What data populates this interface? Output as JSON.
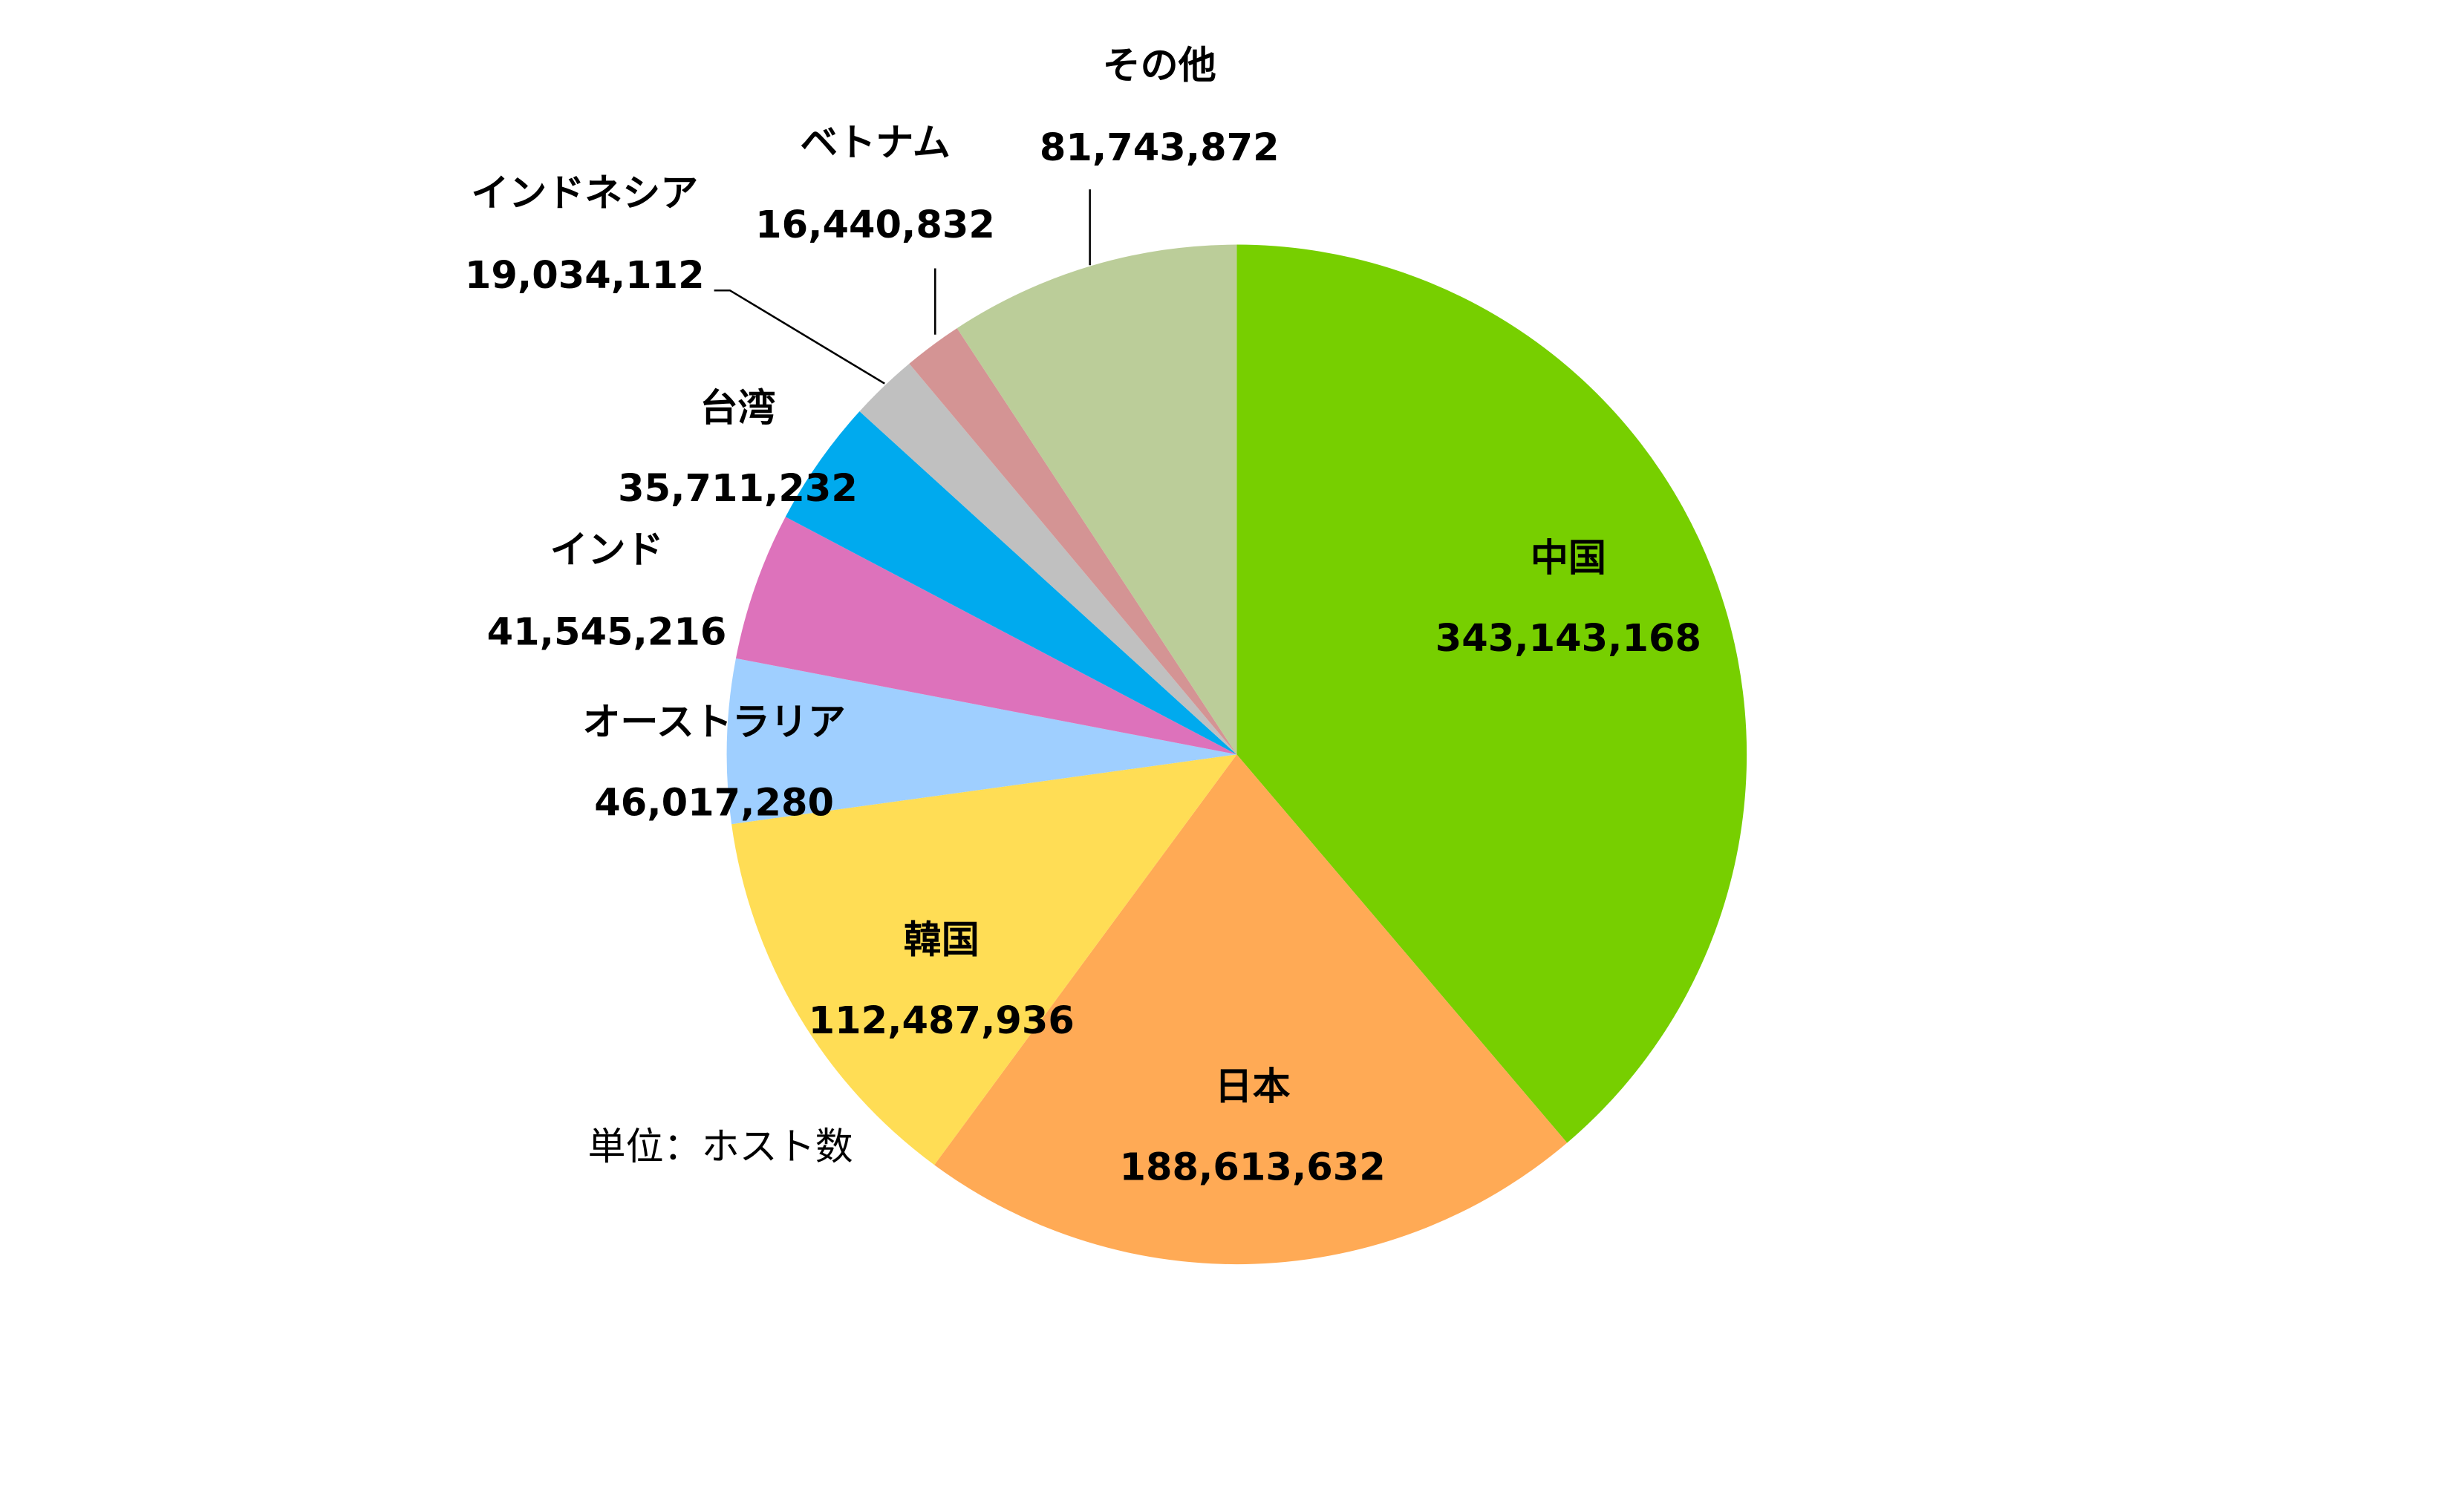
{
  "chart_data": {
    "type": "pie",
    "categories": [
      "中国",
      "日本",
      "韓国",
      "オーストラリア",
      "インド",
      "台湾",
      "インドネシア",
      "ベトナム",
      "その他"
    ],
    "values": [
      343143168,
      188613632,
      112487936,
      46017280,
      41545216,
      35711232,
      19034112,
      16440832,
      81743872
    ],
    "value_labels": [
      "343,143,168",
      "188,613,632",
      "112,487,936",
      "46,017,280",
      "41,545,216",
      "35,711,232",
      "19,034,112",
      "16,440,832",
      "81,743,872"
    ],
    "colors": [
      "#77cf00",
      "#ffaa55",
      "#ffdd55",
      "#9fcfff",
      "#dd72bb",
      "#00aaee",
      "#c0c0c0",
      "#d49494",
      "#bbcd99"
    ],
    "note": "単位：ホスト数"
  }
}
